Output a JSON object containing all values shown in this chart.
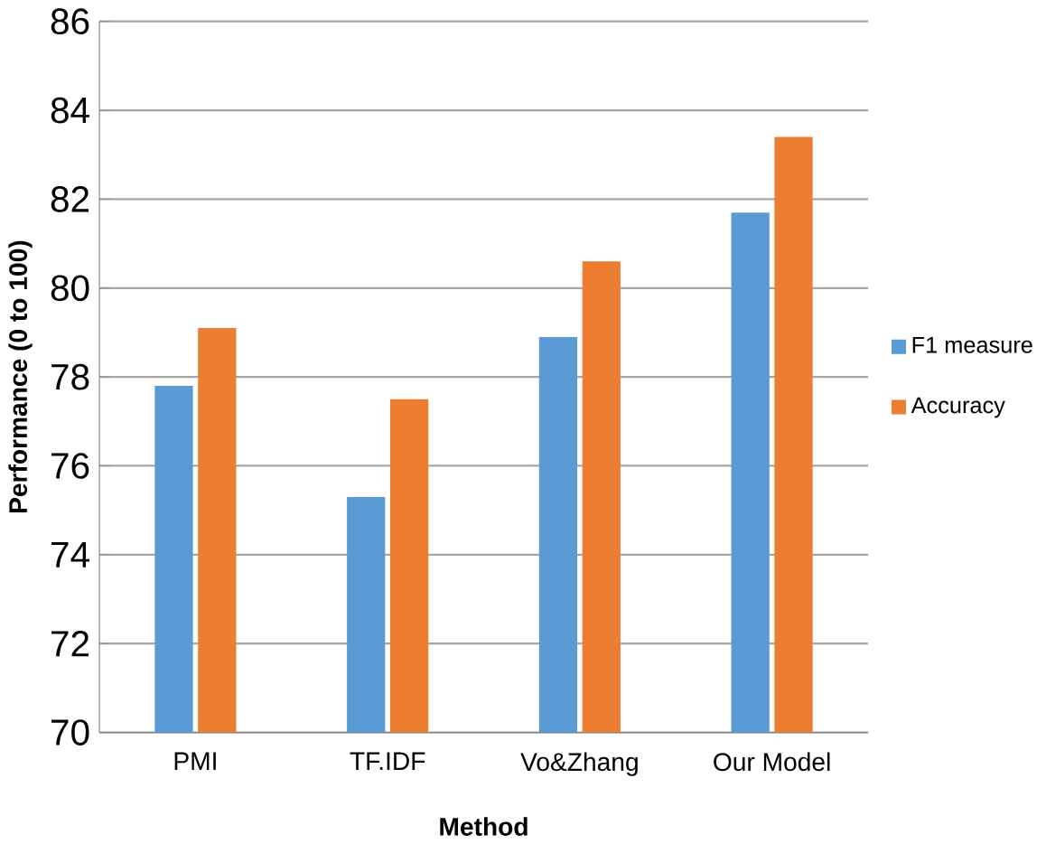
{
  "chart_data": {
    "type": "bar",
    "xlabel": "Method",
    "ylabel": "Performance (0 to 100)",
    "categories": [
      "PMI",
      "TF.IDF",
      "Vo&Zhang",
      "Our Model"
    ],
    "series": [
      {
        "name": "F1 measure",
        "color": "#5b9bd5",
        "values": [
          77.8,
          75.3,
          78.9,
          81.7
        ]
      },
      {
        "name": "Accuracy",
        "color": "#ed7d31",
        "values": [
          79.1,
          77.5,
          80.6,
          83.4
        ]
      }
    ],
    "ylim": [
      70,
      86
    ],
    "yticks": [
      70,
      72,
      74,
      76,
      78,
      80,
      82,
      84,
      86
    ],
    "grid": "y",
    "legend": "right"
  }
}
